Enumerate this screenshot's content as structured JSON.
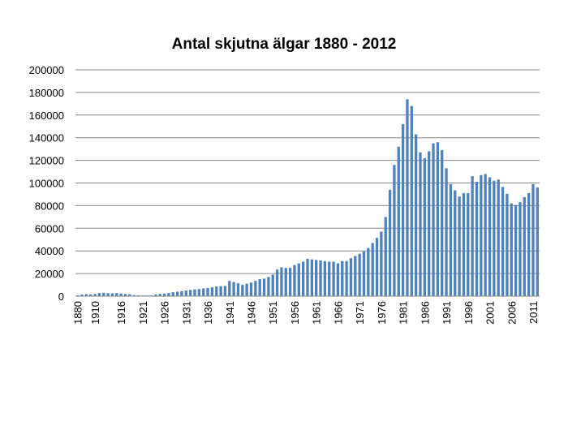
{
  "chart_data": {
    "type": "bar",
    "title": "Antal skjutna älgar 1880 - 2012",
    "xlabel": "",
    "ylabel": "",
    "ylim": [
      0,
      200000
    ],
    "yticks": [
      "0",
      "20000",
      "40000",
      "60000",
      "80000",
      "100000",
      "120000",
      "140000",
      "160000",
      "180000",
      "200000"
    ],
    "xtick_labels": [
      "1880",
      "1910",
      "1916",
      "1921",
      "1926",
      "1931",
      "1936",
      "1941",
      "1946",
      "1951",
      "1956",
      "1961",
      "1966",
      "1971",
      "1976",
      "1981",
      "1986",
      "1991",
      "1996",
      "2001",
      "2006",
      "2011"
    ],
    "grid": true,
    "bar_color": "#4f81bd",
    "categories": [
      "1880",
      "1907",
      "1908",
      "1909",
      "1910",
      "1911",
      "1912",
      "1913",
      "1914",
      "1915",
      "1916",
      "1917",
      "1918",
      "1919",
      "1920",
      "1921",
      "1922",
      "1923",
      "1924",
      "1925",
      "1926",
      "1927",
      "1928",
      "1929",
      "1930",
      "1931",
      "1932",
      "1933",
      "1934",
      "1935",
      "1936",
      "1937",
      "1938",
      "1939",
      "1940",
      "1941",
      "1942",
      "1943",
      "1944",
      "1945",
      "1946",
      "1947",
      "1948",
      "1949",
      "1950",
      "1951",
      "1952",
      "1953",
      "1954",
      "1955",
      "1956",
      "1957",
      "1958",
      "1959",
      "1960",
      "1961",
      "1962",
      "1963",
      "1964",
      "1965",
      "1966",
      "1967",
      "1968",
      "1969",
      "1970",
      "1971",
      "1972",
      "1973",
      "1974",
      "1975",
      "1976",
      "1977",
      "1978",
      "1979",
      "1980",
      "1981",
      "1982",
      "1983",
      "1984",
      "1985",
      "1986",
      "1987",
      "1988",
      "1989",
      "1990",
      "1991",
      "1992",
      "1993",
      "1994",
      "1995",
      "1996",
      "1997",
      "1998",
      "1999",
      "2000",
      "2001",
      "2002",
      "2003",
      "2004",
      "2005",
      "2006",
      "2007",
      "2008",
      "2009",
      "2010",
      "2011",
      "2012"
    ],
    "values": [
      800,
      1500,
      1800,
      1500,
      2000,
      2800,
      3000,
      2700,
      2500,
      2800,
      2300,
      2000,
      1700,
      1000,
      700,
      500,
      600,
      700,
      1500,
      2000,
      2300,
      2800,
      3500,
      4000,
      4500,
      5000,
      5500,
      6000,
      6300,
      6800,
      7200,
      7800,
      8500,
      8800,
      9000,
      13500,
      12500,
      11500,
      10000,
      11000,
      12000,
      13500,
      15000,
      15500,
      17000,
      19000,
      23500,
      25500,
      25000,
      25000,
      27500,
      29000,
      30500,
      33000,
      32500,
      32000,
      31500,
      31000,
      30500,
      30500,
      29000,
      31000,
      31000,
      33500,
      35500,
      37500,
      39500,
      42500,
      47000,
      51500,
      57000,
      70000,
      94000,
      116000,
      132000,
      152000,
      174000,
      168000,
      143000,
      127000,
      122000,
      128000,
      135000,
      136000,
      129000,
      113000,
      99000,
      93500,
      88000,
      91000,
      91000,
      106000,
      101000,
      107000,
      108000,
      105000,
      102000,
      103000,
      96500,
      90500,
      82000,
      80500,
      83000,
      87500,
      91000,
      99000,
      96000
    ]
  }
}
